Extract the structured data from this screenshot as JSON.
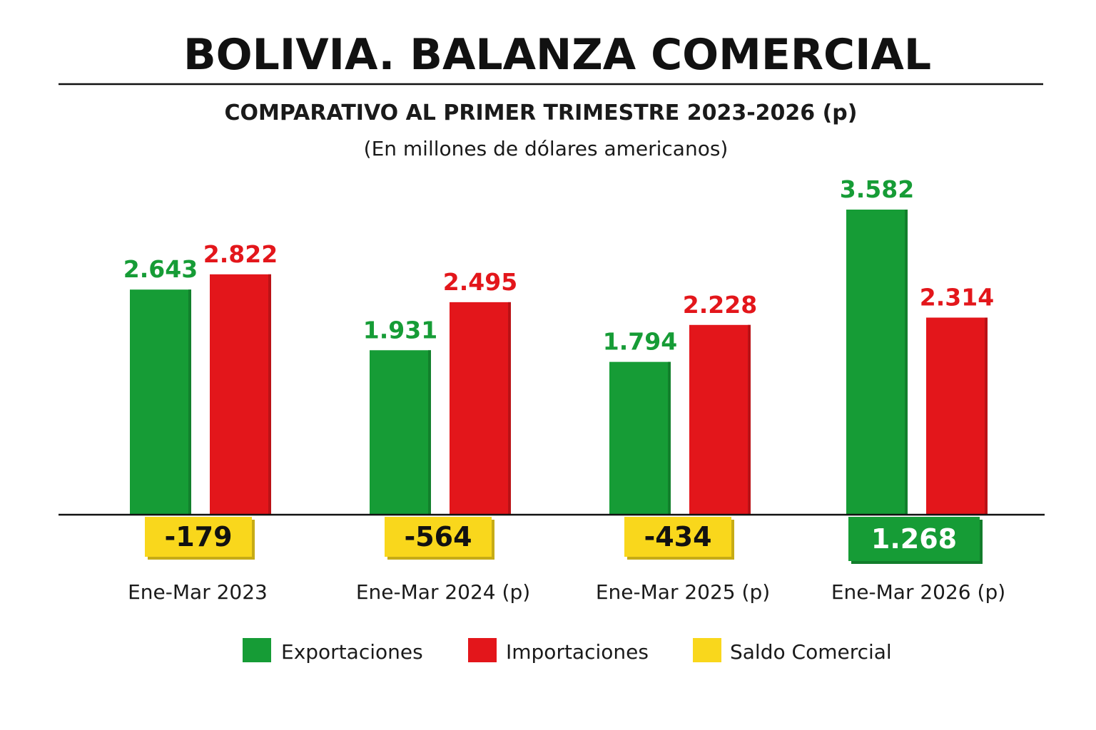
{
  "chart_data": {
    "type": "bar",
    "title": "BOLIVIA. BALANZA COMERCIAL",
    "subtitle": "COMPARATIVO AL PRIMER TRIMESTRE 2023-2026 (p)",
    "unit_note": "(En millones de dólares americanos)",
    "categories": [
      "Ene-Mar 2023",
      "Ene-Mar 2024 (p)",
      "Ene-Mar 2025 (p)",
      "Ene-Mar 2026 (p)"
    ],
    "series": [
      {
        "name": "Exportaciones",
        "color": "#169c36",
        "values": [
          2643,
          1931,
          1794,
          3582
        ],
        "labels": [
          "2.643",
          "1.931",
          "1.794",
          "3.582"
        ]
      },
      {
        "name": "Importaciones",
        "color": "#e3161b",
        "values": [
          2822,
          2495,
          2228,
          2314
        ],
        "labels": [
          "2.822",
          "2.495",
          "2.228",
          "2.314"
        ]
      }
    ],
    "balance": {
      "name": "Saldo Comercial",
      "color_negative": "#f9d71c",
      "color_positive": "#169c36",
      "values": [
        -179,
        -564,
        -434,
        1268
      ],
      "labels": [
        "-179",
        "-564",
        "-434",
        "1.268"
      ]
    },
    "ylim": [
      0,
      4000
    ],
    "grid": false,
    "legend_position": "bottom"
  }
}
